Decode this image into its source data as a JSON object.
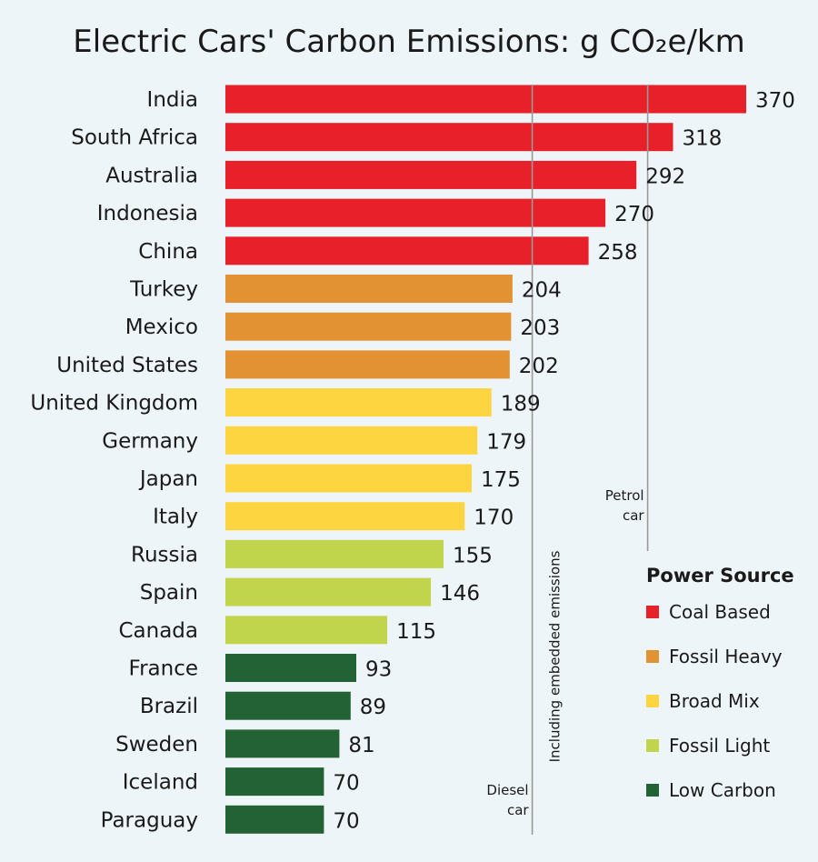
{
  "chart_data": {
    "type": "bar",
    "orientation": "horizontal",
    "title": "Electric Cars' Carbon Emissions: g CO₂e/km",
    "xlabel": "",
    "ylabel": "",
    "xlim": [
      0,
      370
    ],
    "grid": false,
    "legend_position": "bottom-right",
    "legend_title": "Power Source",
    "categories": [
      "India",
      "South Africa",
      "Australia",
      "Indonesia",
      "China",
      "Turkey",
      "Mexico",
      "United States",
      "United Kingdom",
      "Germany",
      "Japan",
      "Italy",
      "Russia",
      "Spain",
      "Canada",
      "France",
      "Brazil",
      "Sweden",
      "Iceland",
      "Paraguay"
    ],
    "values": [
      370,
      318,
      292,
      270,
      258,
      204,
      203,
      202,
      189,
      179,
      175,
      170,
      155,
      146,
      115,
      93,
      89,
      81,
      70,
      70
    ],
    "value_labels": [
      "370",
      "318",
      "292",
      "270",
      "258",
      "204",
      "203",
      "202",
      "189",
      "179",
      "175",
      "170",
      "155",
      "146",
      "115",
      "93",
      "89",
      "81",
      "70",
      "70"
    ],
    "power_source": [
      "Coal Based",
      "Coal Based",
      "Coal Based",
      "Coal Based",
      "Coal Based",
      "Fossil Heavy",
      "Fossil Heavy",
      "Fossil Heavy",
      "Broad Mix",
      "Broad Mix",
      "Broad Mix",
      "Broad Mix",
      "Fossil Light",
      "Fossil Light",
      "Fossil Light",
      "Low Carbon",
      "Low Carbon",
      "Low Carbon",
      "Low Carbon",
      "Low Carbon"
    ],
    "legend": [
      {
        "name": "Coal Based",
        "color": "#e8202a"
      },
      {
        "name": "Fossil Heavy",
        "color": "#e29232"
      },
      {
        "name": "Broad Mix",
        "color": "#fdd540"
      },
      {
        "name": "Fossil Light",
        "color": "#c1d54c"
      },
      {
        "name": "Low Carbon",
        "color": "#226234"
      }
    ],
    "reference_lines": [
      {
        "value": 218,
        "label_lines": [
          "Diesel",
          "car"
        ]
      },
      {
        "value": 300,
        "label_lines": [
          "Petrol",
          "car"
        ]
      }
    ],
    "annotations": [
      "Including embedded emissions"
    ],
    "reference_line_color": "#999999"
  }
}
